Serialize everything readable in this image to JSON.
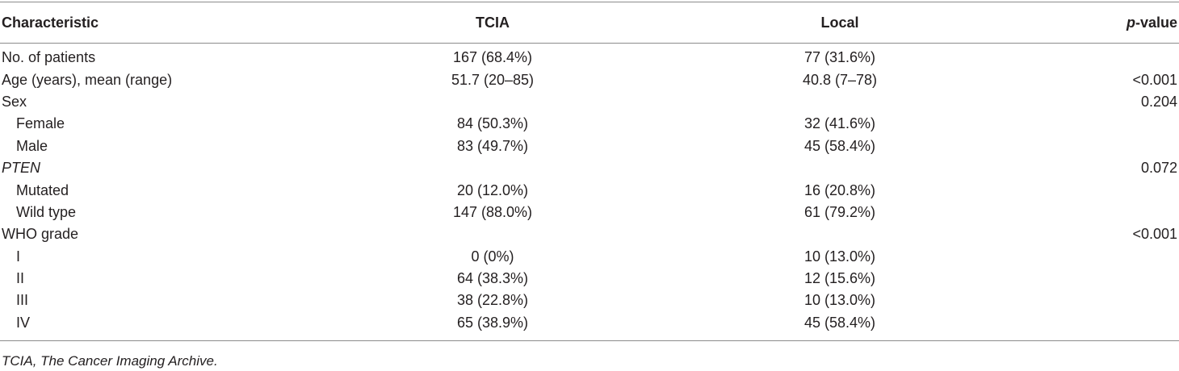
{
  "table": {
    "headers": {
      "characteristic": "Characteristic",
      "tcia": "TCIA",
      "local": "Local",
      "p_italic": "p",
      "p_rest": "-value"
    },
    "rows": [
      {
        "label": "No. of patients",
        "indent": false,
        "italic": false,
        "tcia": "167 (68.4%)",
        "local": "77 (31.6%)",
        "p": ""
      },
      {
        "label": "Age (years), mean (range)",
        "indent": false,
        "italic": false,
        "tcia": "51.7 (20–85)",
        "local": "40.8 (7–78)",
        "p": "<0.001"
      },
      {
        "label": "Sex",
        "indent": false,
        "italic": false,
        "tcia": "",
        "local": "",
        "p": "0.204"
      },
      {
        "label": "Female",
        "indent": true,
        "italic": false,
        "tcia": "84 (50.3%)",
        "local": "32 (41.6%)",
        "p": ""
      },
      {
        "label": "Male",
        "indent": true,
        "italic": false,
        "tcia": "83 (49.7%)",
        "local": "45 (58.4%)",
        "p": ""
      },
      {
        "label": "PTEN",
        "indent": false,
        "italic": true,
        "tcia": "",
        "local": "",
        "p": "0.072"
      },
      {
        "label": "Mutated",
        "indent": true,
        "italic": false,
        "tcia": "20 (12.0%)",
        "local": "16 (20.8%)",
        "p": ""
      },
      {
        "label": "Wild type",
        "indent": true,
        "italic": false,
        "tcia": "147 (88.0%)",
        "local": "61 (79.2%)",
        "p": ""
      },
      {
        "label": "WHO grade",
        "indent": false,
        "italic": false,
        "tcia": "",
        "local": "",
        "p": "<0.001"
      },
      {
        "label": "I",
        "indent": true,
        "italic": false,
        "tcia": "0 (0%)",
        "local": "10 (13.0%)",
        "p": ""
      },
      {
        "label": "II",
        "indent": true,
        "italic": false,
        "tcia": "64 (38.3%)",
        "local": "12 (15.6%)",
        "p": ""
      },
      {
        "label": "III",
        "indent": true,
        "italic": false,
        "tcia": "38 (22.8%)",
        "local": "10 (13.0%)",
        "p": ""
      },
      {
        "label": "IV",
        "indent": true,
        "italic": false,
        "tcia": "65 (38.9%)",
        "local": "45 (58.4%)",
        "p": ""
      }
    ]
  },
  "footnote": "TCIA, The Cancer Imaging Archive."
}
